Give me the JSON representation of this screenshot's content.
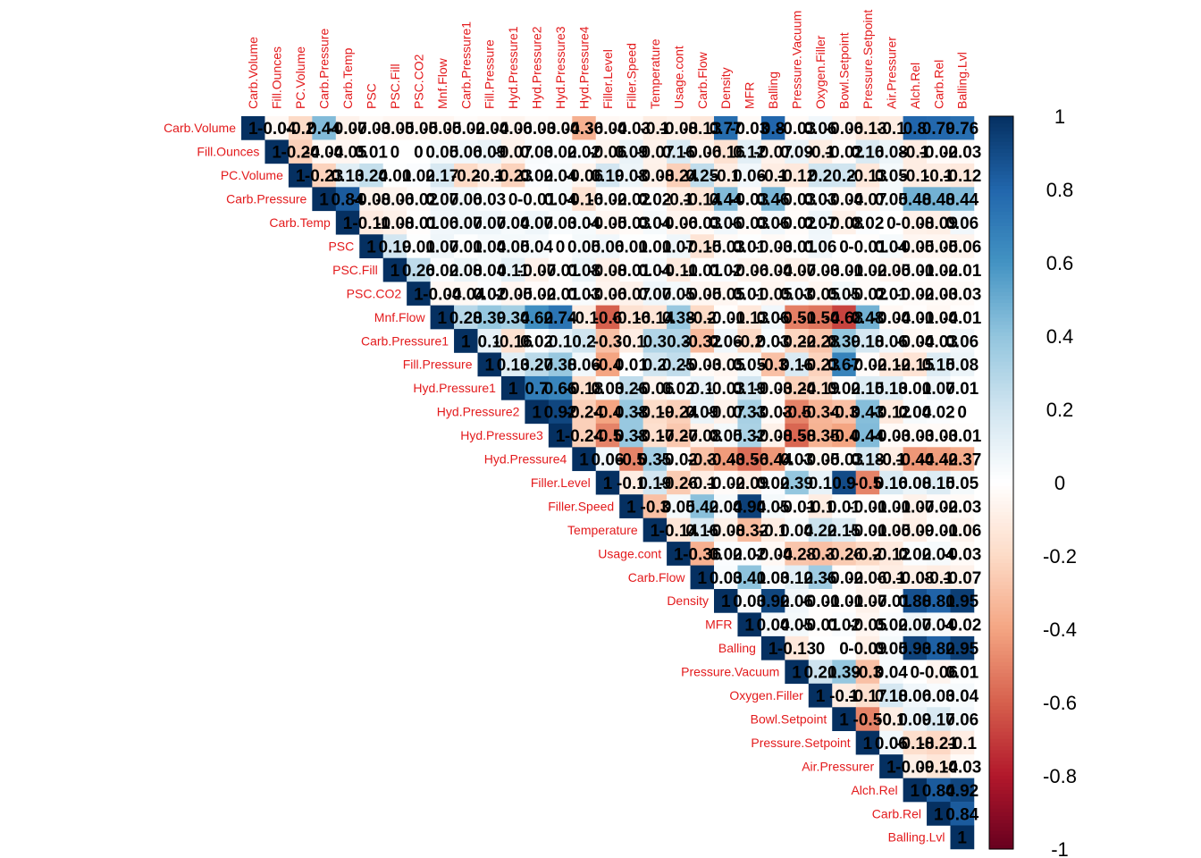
{
  "chart_data": {
    "type": "heatmap",
    "variables": [
      "Carb.Volume",
      "Fill.Ounces",
      "PC.Volume",
      "Carb.Pressure",
      "Carb.Temp",
      "PSC",
      "PSC.Fill",
      "PSC.CO2",
      "Mnf.Flow",
      "Carb.Pressure1",
      "Fill.Pressure",
      "Hyd.Pressure1",
      "Hyd.Pressure2",
      "Hyd.Pressure3",
      "Hyd.Pressure4",
      "Filler.Level",
      "Filler.Speed",
      "Temperature",
      "Usage.cont",
      "Carb.Flow",
      "Density",
      "MFR",
      "Balling",
      "Pressure.Vacuum",
      "Oxygen.Filler",
      "Bowl.Setpoint",
      "Pressure.Setpoint",
      "Air.Pressurer",
      "Alch.Rel",
      "Carb.Rel",
      "Balling.Lvl"
    ],
    "values": [
      [
        "1",
        "-0.04",
        "-0.2",
        "0.44",
        "-0.07",
        "-0.03",
        "-0.05",
        "-0.05",
        "-0.05",
        "-0.02",
        "-0.04",
        "-0.06",
        "-0.03",
        "-0.04",
        "-0.36",
        "-0.04",
        "-0.03",
        "-0.1",
        "-0.08",
        "-0.13",
        "0.77",
        "-0.03",
        "0.8",
        "-0.03",
        "0.06",
        "-0.06",
        "-0.13",
        "-0.1",
        "0.8",
        "0.79",
        "0.76"
      ],
      [
        "",
        "1",
        "-0.24",
        "-0.04",
        "-0.05",
        "0.01",
        "0",
        "0",
        "0.05",
        "0.06",
        "0.09",
        "-0.07",
        "0.03",
        "0.02",
        "0.02",
        "-0.06",
        "0.09",
        "-0.07",
        "0.16",
        "-0.06",
        "-0.16",
        "0.12",
        "-0.07",
        "0.09",
        "-0.1",
        "-0.02",
        "0.16",
        "0.08",
        "-0.1",
        "-0.02",
        "-0.03"
      ],
      [
        "",
        "",
        "1",
        "-0.23",
        "0.13",
        "0.24",
        "0.01",
        "0.02",
        "0.17",
        "-0.2",
        "-0.1",
        "-0.23",
        "0.02",
        "0.04",
        "-0.06",
        "0.19",
        "0.08",
        "-0.08",
        "-0.24",
        "0.25",
        "-0.1",
        "0.06",
        "-0.1",
        "-0.12",
        "0.2",
        "0.2",
        "-0.13",
        "0.05",
        "-0.1",
        "-0.1",
        "-0.12"
      ],
      [
        "",
        "",
        "",
        "1",
        "0.84",
        "-0.08",
        "-0.06",
        "-0.02",
        "0.07",
        "0.06",
        "0.03",
        "0",
        "-0.01",
        "0.04",
        "-0.16",
        "-0.02",
        "-0.02",
        "0.02",
        "-0.1",
        "-0.14",
        "0.44",
        "-0.03",
        "0.46",
        "-0.03",
        "0.03",
        "-0.04",
        "-0.07",
        "0.05",
        "0.48",
        "0.48",
        "0.44"
      ],
      [
        "",
        "",
        "",
        "",
        "1",
        "-0.11",
        "-0.08",
        "-0.01",
        "0.06",
        "0.07",
        "0.07",
        "0.04",
        "0.07",
        "0.03",
        "0.04",
        "-0.05",
        "-0.03",
        "0.04",
        "-0.06",
        "-0.03",
        "0.06",
        "-0.03",
        "0.06",
        "-0.02",
        "0.07",
        "-0.08",
        "0.02",
        "0",
        "-0.08",
        "-0.09",
        "0.06"
      ],
      [
        "",
        "",
        "",
        "",
        "",
        "1",
        "0.19",
        "0.01",
        "0.07",
        "0.01",
        "0.04",
        "0.05",
        "0.04",
        "0",
        "0.05",
        "0.06",
        "0.01",
        "0.01",
        "0.07",
        "-0.15",
        "-0.03",
        "0.01",
        "-0.03",
        "-0.01",
        "0.06",
        "0",
        "-0.01",
        "0.04",
        "-0.05",
        "-0.05",
        "-0.06"
      ],
      [
        "",
        "",
        "",
        "",
        "",
        "",
        "1",
        "0.26",
        "0.02",
        "0.08",
        "0.04",
        "0.11",
        "-0.07",
        "-0.01",
        "0.08",
        "-0.08",
        "-0.01",
        "0.04",
        "-0.11",
        "-0.01",
        "0.02",
        "-0.06",
        "-0.04",
        "-0.07",
        "-0.03",
        "-0.01",
        "-0.02",
        "-0.05",
        "-0.01",
        "-0.02",
        "-0.01"
      ],
      [
        "",
        "",
        "",
        "",
        "",
        "",
        "",
        "1",
        "-0.04",
        "-0.04",
        "0.02",
        "-0.05",
        "-0.02",
        "-0.01",
        "0.03",
        "-0.06",
        "-0.07",
        "0.07",
        "0.05",
        "-0.05",
        "-0.05",
        "0.01",
        "-0.05",
        "0.03",
        "-0.05",
        "0.05",
        "-0.02",
        "0.01",
        "-0.02",
        "-0.03",
        "-0.03"
      ],
      [
        "",
        "",
        "",
        "",
        "",
        "",
        "",
        "",
        "1",
        "0.28",
        "0.39",
        "0.34",
        "0.62",
        "0.74",
        "-0.1",
        "-0.6",
        "-0.16",
        "-0.14",
        "0.38",
        "-0.2",
        "-0.01",
        "-0.13",
        "0.06",
        "-0.51",
        "-0.54",
        "-0.68",
        "0.48",
        "-0.04",
        "-0.01",
        "-0.04",
        "-0.01"
      ],
      [
        "",
        "",
        "",
        "",
        "",
        "",
        "",
        "",
        "",
        "1",
        "0.1",
        "-0.16",
        "0.02",
        "0.1",
        "0.2",
        "-0.3",
        "-0.1",
        "0.3",
        "0.3",
        "-0.32",
        "0.06",
        "-0.2",
        "0.03",
        "-0.22",
        "-0.28",
        "0.39",
        "0.18",
        "0.06",
        "-0.04",
        "-0.03",
        "0.06"
      ],
      [
        "",
        "",
        "",
        "",
        "",
        "",
        "",
        "",
        "",
        "",
        "1",
        "0.13",
        "0.27",
        "0.38",
        "0.06",
        "-0.4",
        "0.01",
        "0.2",
        "0.25",
        "-0.03",
        "-0.05",
        "0.05",
        "-0.3",
        "0.16",
        "-0.23",
        "0.67",
        "-0.02",
        "-0.12",
        "-0.15",
        "0.15",
        "0.08"
      ],
      [
        "",
        "",
        "",
        "",
        "",
        "",
        "",
        "",
        "",
        "",
        "",
        "1",
        "0.7",
        "0.66",
        "-0.18",
        "0.03",
        "0.26",
        "-0.06",
        "0.02",
        "0.1",
        "-0.03",
        "0.19",
        "-0.03",
        "-0.24",
        "-0.19",
        "0.02",
        "0.15",
        "0.13",
        "0.01",
        "0.07",
        "0.01"
      ],
      [
        "",
        "",
        "",
        "",
        "",
        "",
        "",
        "",
        "",
        "",
        "",
        "",
        "1",
        "0.92",
        "-0.24",
        "-0.4",
        "0.38",
        "-0.19",
        "-0.24",
        "0.09",
        "-0.07",
        "0.33",
        "-0.03",
        "-0.5",
        "-0.34",
        "-0.3",
        "0.43",
        "-0.12",
        "0.04",
        "0.02",
        "0"
      ],
      [
        "",
        "",
        "",
        "",
        "",
        "",
        "",
        "",
        "",
        "",
        "",
        "",
        "",
        "1",
        "-0.24",
        "-0.5",
        "0.38",
        "-0.17",
        "-0.27",
        "-0.08",
        "0.05",
        "0.32",
        "-0.08",
        "-0.58",
        "-0.35",
        "-0.4",
        "0.44",
        "-0.03",
        "-0.03",
        "-0.03",
        "-0.01"
      ],
      [
        "",
        "",
        "",
        "",
        "",
        "",
        "",
        "",
        "",
        "",
        "",
        "",
        "",
        "",
        "1",
        "0.06",
        "-0.5",
        "0.35",
        "-0.02",
        "-0.3",
        "-0.43",
        "-0.56",
        "-0.44",
        "0.03",
        "-0.05",
        "-0.03",
        "0.18",
        "-0.1",
        "-0.44",
        "-0.42",
        "-0.37"
      ],
      [
        "",
        "",
        "",
        "",
        "",
        "",
        "",
        "",
        "",
        "",
        "",
        "",
        "",
        "",
        "",
        "1",
        "-0.1",
        "0.19",
        "-0.26",
        "-0.1",
        "-0.02",
        "-0.09",
        "0.02",
        "0.39",
        "0.1",
        "0.9",
        "-0.5",
        "0.16",
        "0.08",
        "0.15",
        "0.05"
      ],
      [
        "",
        "",
        "",
        "",
        "",
        "",
        "",
        "",
        "",
        "",
        "",
        "",
        "",
        "",
        "",
        "",
        "1",
        "-0.3",
        "0.05",
        "0.42",
        "0.04",
        "0.94",
        "0.05",
        "-0.01",
        "-0.1",
        "0.01",
        "-0.01",
        "-0.01",
        "-0.07",
        "-0.02",
        "-0.03"
      ],
      [
        "",
        "",
        "",
        "",
        "",
        "",
        "",
        "",
        "",
        "",
        "",
        "",
        "",
        "",
        "",
        "",
        "",
        "1",
        "-0.14",
        "0.16",
        "-0.08",
        "-0.32",
        "-0.1",
        "0.04",
        "0.22",
        "0.15",
        "-0.01",
        "-0.05",
        "-0.09",
        "-0.01",
        "-0.06"
      ],
      [
        "",
        "",
        "",
        "",
        "",
        "",
        "",
        "",
        "",
        "",
        "",
        "",
        "",
        "",
        "",
        "",
        "",
        "",
        "1",
        "-0.36",
        "0.02",
        "0.02",
        "-0.04",
        "-0.28",
        "-0.3",
        "-0.26",
        "-0.2",
        "-0.12",
        "0.02",
        "0.04",
        "-0.03"
      ],
      [
        "",
        "",
        "",
        "",
        "",
        "",
        "",
        "",
        "",
        "",
        "",
        "",
        "",
        "",
        "",
        "",
        "",
        "",
        "",
        "1",
        "0.03",
        "0.41",
        "0.03",
        "0.12",
        "0.36",
        "-0.02",
        "-0.06",
        "-0.1",
        "-0.08",
        "-0.1",
        "-0.07"
      ],
      [
        "",
        "",
        "",
        "",
        "",
        "",
        "",
        "",
        "",
        "",
        "",
        "",
        "",
        "",
        "",
        "",
        "",
        "",
        "",
        "",
        "1",
        "0.03",
        "0.92",
        "0.06",
        "-0.01",
        "-0.01",
        "-0.07",
        "-0.01",
        "0.88",
        "0.81",
        "0.95"
      ],
      [
        "",
        "",
        "",
        "",
        "",
        "",
        "",
        "",
        "",
        "",
        "",
        "",
        "",
        "",
        "",
        "",
        "",
        "",
        "",
        "",
        "",
        "1",
        "0.04",
        "0.05",
        "-0.01",
        "0.02",
        "-0.05",
        "0.02",
        "0.07",
        "0.04",
        "-0.02"
      ],
      [
        "",
        "",
        "",
        "",
        "",
        "",
        "",
        "",
        "",
        "",
        "",
        "",
        "",
        "",
        "",
        "",
        "",
        "",
        "",
        "",
        "",
        "",
        "1",
        "-0.13",
        "0",
        "0",
        "-0.09",
        "0.05",
        "0.93",
        "0.82",
        "0.95"
      ],
      [
        "",
        "",
        "",
        "",
        "",
        "",
        "",
        "",
        "",
        "",
        "",
        "",
        "",
        "",
        "",
        "",
        "",
        "",
        "",
        "",
        "",
        "",
        "",
        "1",
        "0.21",
        "0.39",
        "-0.3",
        "0.04",
        "0",
        "-0.06",
        "0.01"
      ],
      [
        "",
        "",
        "",
        "",
        "",
        "",
        "",
        "",
        "",
        "",
        "",
        "",
        "",
        "",
        "",
        "",
        "",
        "",
        "",
        "",
        "",
        "",
        "",
        "",
        "1",
        "-0.1",
        "-0.17",
        "0.18",
        "0.06",
        "0.03",
        "0.04"
      ],
      [
        "",
        "",
        "",
        "",
        "",
        "",
        "",
        "",
        "",
        "",
        "",
        "",
        "",
        "",
        "",
        "",
        "",
        "",
        "",
        "",
        "",
        "",
        "",
        "",
        "",
        "1",
        "-0.5",
        "-0.1",
        "0.09",
        "0.17",
        "0.06"
      ],
      [
        "",
        "",
        "",
        "",
        "",
        "",
        "",
        "",
        "",
        "",
        "",
        "",
        "",
        "",
        "",
        "",
        "",
        "",
        "",
        "",
        "",
        "",
        "",
        "",
        "",
        "",
        "1",
        "0.06",
        "-0.18",
        "-0.21",
        "-0.1"
      ],
      [
        "",
        "",
        "",
        "",
        "",
        "",
        "",
        "",
        "",
        "",
        "",
        "",
        "",
        "",
        "",
        "",
        "",
        "",
        "",
        "",
        "",
        "",
        "",
        "",
        "",
        "",
        "",
        "1",
        "-0.09",
        "-0.14",
        "-0.03"
      ],
      [
        "",
        "",
        "",
        "",
        "",
        "",
        "",
        "",
        "",
        "",
        "",
        "",
        "",
        "",
        "",
        "",
        "",
        "",
        "",
        "",
        "",
        "",
        "",
        "",
        "",
        "",
        "",
        "",
        "1",
        "0.84",
        "0.92"
      ],
      [
        "",
        "",
        "",
        "",
        "",
        "",
        "",
        "",
        "",
        "",
        "",
        "",
        "",
        "",
        "",
        "",
        "",
        "",
        "",
        "",
        "",
        "",
        "",
        "",
        "",
        "",
        "",
        "",
        "",
        "1",
        "0.84"
      ],
      [
        "",
        "",
        "",
        "",
        "",
        "",
        "",
        "",
        "",
        "",
        "",
        "",
        "",
        "",
        "",
        "",
        "",
        "",
        "",
        "",
        "",
        "",
        "",
        "",
        "",
        "",
        "",
        "",
        "",
        "",
        "1"
      ]
    ],
    "colorbar": {
      "ticks": [
        "1",
        "0.8",
        "0.6",
        "0.4",
        "0.2",
        "0",
        "-0.2",
        "-0.4",
        "-0.6",
        "-0.8",
        "-1"
      ],
      "range": [
        -1,
        1
      ],
      "colors": [
        "#67001F",
        "#B2182B",
        "#D6604D",
        "#F4A582",
        "#FDDBC7",
        "#FFFFFF",
        "#D1E5F0",
        "#92C5DE",
        "#4393C3",
        "#2166AC",
        "#053061"
      ]
    },
    "label_color": "#E31A1C",
    "number_color": "#000000",
    "layout": "upper-triangle"
  }
}
